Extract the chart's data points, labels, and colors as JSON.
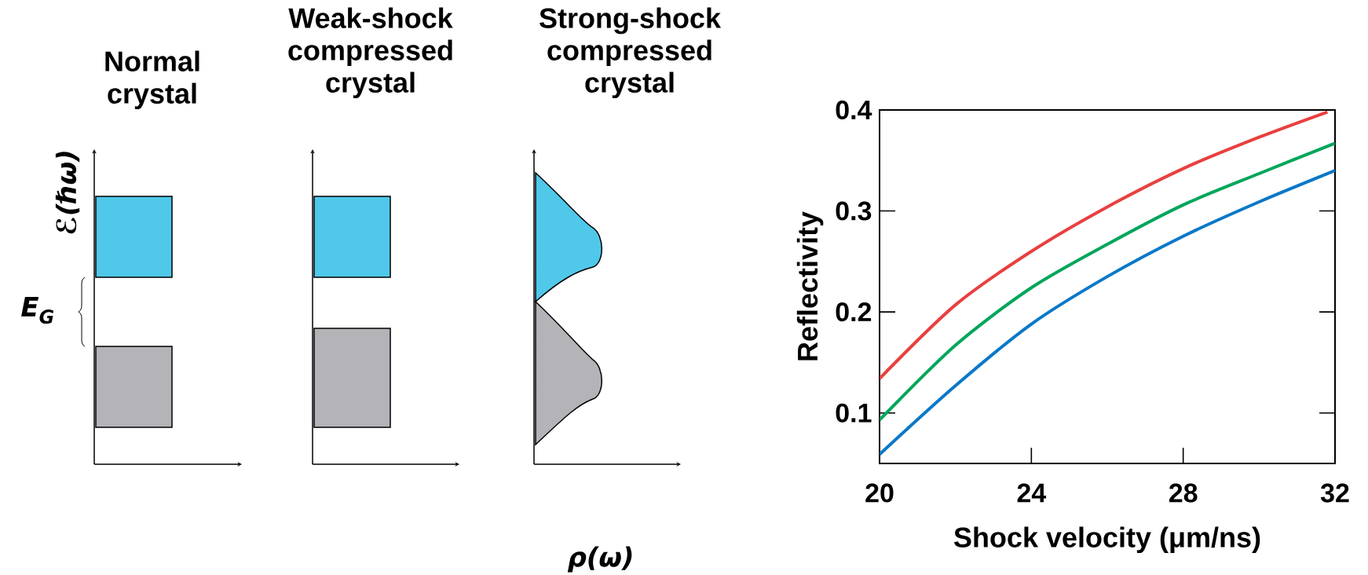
{
  "chart_data": [
    {
      "type": "other",
      "annotations": [
        "Normal crystal",
        "Weak-shock compressed crystal",
        "Strong-shock compressed crystal",
        "ℰ(ℏω)",
        "E$_{G}$",
        "ρ(ω)"
      ]
    },
    {
      "type": "line",
      "xlabel": "Shock velocity (μm/ns)",
      "ylabel": "Reflectivity",
      "xlim": [
        20,
        32
      ],
      "ylim": [
        0.05,
        0.4
      ],
      "xticks": [
        20,
        24,
        28,
        32
      ],
      "yticks": [
        0.1,
        0.2,
        0.3,
        0.4
      ],
      "marker": "none",
      "line_style": "solid",
      "series": [
        {
          "color": "#e8403f",
          "x": [
            20,
            22,
            24,
            26,
            28,
            30,
            31.8
          ],
          "values": [
            0.134,
            0.207,
            0.26,
            0.304,
            0.342,
            0.373,
            0.398
          ]
        },
        {
          "color": "#00a65a",
          "x": [
            20,
            22,
            24,
            26,
            28,
            30,
            32
          ],
          "values": [
            0.093,
            0.167,
            0.224,
            0.267,
            0.306,
            0.337,
            0.367
          ]
        },
        {
          "color": "#0a78c8",
          "x": [
            20,
            22,
            24,
            26,
            28,
            30,
            32
          ],
          "values": [
            0.059,
            0.127,
            0.188,
            0.235,
            0.275,
            0.309,
            0.34
          ]
        }
      ]
    }
  ]
}
